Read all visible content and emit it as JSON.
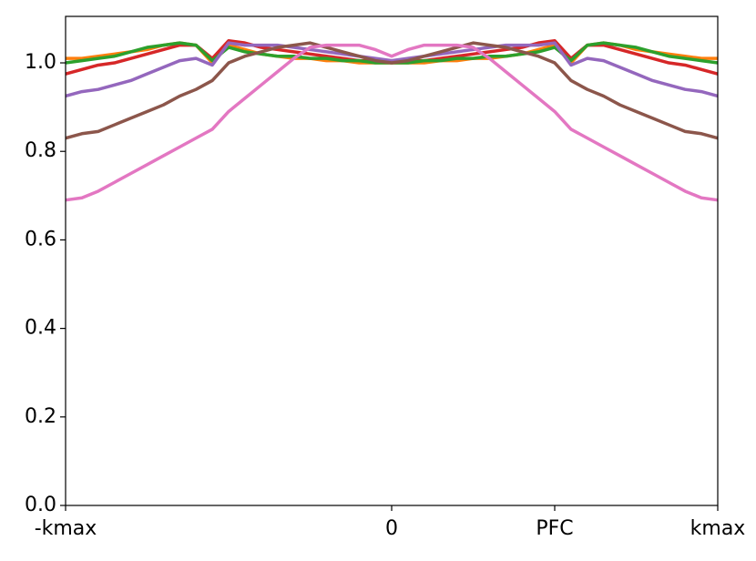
{
  "chart_data": {
    "type": "line",
    "x": [
      -1,
      -0.95,
      -0.9,
      -0.85,
      -0.8,
      -0.75,
      -0.7,
      -0.65,
      -0.6,
      -0.55,
      -0.5,
      -0.45,
      -0.4,
      -0.35,
      -0.3,
      -0.25,
      -0.2,
      -0.15,
      -0.1,
      -0.05,
      0,
      0.05,
      0.1,
      0.15,
      0.2,
      0.25,
      0.3,
      0.35,
      0.4,
      0.45,
      0.5,
      0.55,
      0.6,
      0.65,
      0.7,
      0.75,
      0.8,
      0.85,
      0.9,
      0.95,
      1
    ],
    "series": [
      {
        "color": "#ff7f0e",
        "values": [
          1.01,
          1.01,
          1.015,
          1.02,
          1.025,
          1.03,
          1.04,
          1.045,
          1.04,
          1.0,
          1.04,
          1.03,
          1.02,
          1.015,
          1.01,
          1.01,
          1.005,
          1.005,
          1.0,
          1.0,
          1.0,
          1.0,
          1.0,
          1.005,
          1.005,
          1.01,
          1.01,
          1.015,
          1.02,
          1.03,
          1.04,
          1.0,
          1.04,
          1.045,
          1.04,
          1.03,
          1.025,
          1.02,
          1.015,
          1.01,
          1.01
        ]
      },
      {
        "color": "#d62728",
        "values": [
          0.975,
          0.985,
          0.995,
          1.0,
          1.01,
          1.02,
          1.03,
          1.04,
          1.04,
          1.01,
          1.05,
          1.045,
          1.035,
          1.03,
          1.025,
          1.02,
          1.015,
          1.01,
          1.005,
          1.005,
          1.0,
          1.005,
          1.005,
          1.01,
          1.015,
          1.02,
          1.025,
          1.03,
          1.035,
          1.045,
          1.05,
          1.01,
          1.04,
          1.04,
          1.03,
          1.02,
          1.01,
          1.0,
          0.995,
          0.985,
          0.975
        ]
      },
      {
        "color": "#2ca02c",
        "values": [
          1.0,
          1.005,
          1.01,
          1.015,
          1.025,
          1.035,
          1.04,
          1.045,
          1.04,
          1.005,
          1.035,
          1.025,
          1.02,
          1.015,
          1.015,
          1.01,
          1.01,
          1.005,
          1.005,
          1.0,
          1.0,
          1.0,
          1.005,
          1.005,
          1.01,
          1.01,
          1.015,
          1.015,
          1.02,
          1.025,
          1.035,
          1.005,
          1.04,
          1.045,
          1.04,
          1.035,
          1.025,
          1.015,
          1.01,
          1.005,
          1.0
        ]
      },
      {
        "color": "#9467bd",
        "values": [
          0.925,
          0.935,
          0.94,
          0.95,
          0.96,
          0.975,
          0.99,
          1.005,
          1.01,
          0.995,
          1.045,
          1.04,
          1.04,
          1.04,
          1.035,
          1.03,
          1.025,
          1.02,
          1.015,
          1.01,
          1.005,
          1.01,
          1.015,
          1.02,
          1.025,
          1.03,
          1.035,
          1.04,
          1.04,
          1.04,
          1.045,
          0.995,
          1.01,
          1.005,
          0.99,
          0.975,
          0.96,
          0.95,
          0.94,
          0.935,
          0.925
        ]
      },
      {
        "color": "#8c564b",
        "values": [
          0.83,
          0.84,
          0.845,
          0.86,
          0.875,
          0.89,
          0.905,
          0.925,
          0.94,
          0.96,
          1.0,
          1.015,
          1.025,
          1.035,
          1.04,
          1.045,
          1.035,
          1.025,
          1.015,
          1.005,
          1.0,
          1.005,
          1.015,
          1.025,
          1.035,
          1.045,
          1.04,
          1.035,
          1.025,
          1.015,
          1.0,
          0.96,
          0.94,
          0.925,
          0.905,
          0.89,
          0.875,
          0.86,
          0.845,
          0.84,
          0.83
        ]
      },
      {
        "color": "#e377c2",
        "values": [
          0.69,
          0.695,
          0.71,
          0.73,
          0.75,
          0.77,
          0.79,
          0.81,
          0.83,
          0.85,
          0.89,
          0.92,
          0.95,
          0.98,
          1.01,
          1.035,
          1.04,
          1.04,
          1.04,
          1.03,
          1.015,
          1.03,
          1.04,
          1.04,
          1.04,
          1.035,
          1.01,
          0.98,
          0.95,
          0.92,
          0.89,
          0.85,
          0.83,
          0.81,
          0.79,
          0.77,
          0.75,
          0.73,
          0.71,
          0.695,
          0.69
        ]
      }
    ],
    "xlim": [
      -1,
      1
    ],
    "xticks": [
      {
        "value": -1,
        "label": "-kmax"
      },
      0,
      {
        "value": 0.5,
        "label": "PFC"
      },
      {
        "value": 1,
        "label": "kmax"
      }
    ],
    "ylim": [
      0,
      1.105
    ],
    "yticks": [
      {
        "value": 0,
        "label": "0.0"
      },
      0.2,
      0.4,
      0.6,
      0.8,
      {
        "value": 1,
        "label": "1.0"
      }
    ],
    "grid": false
  }
}
